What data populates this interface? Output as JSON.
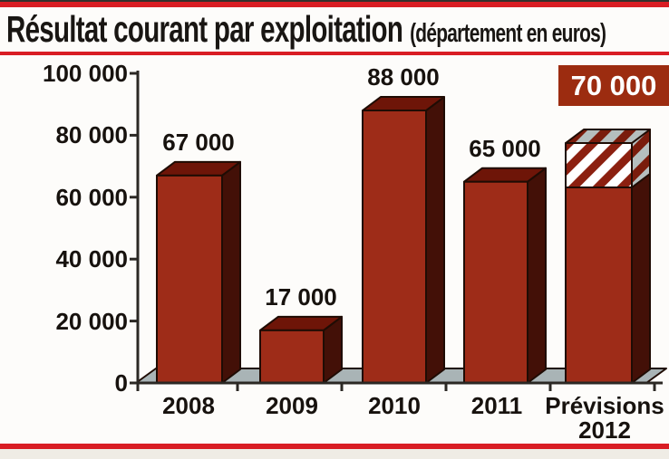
{
  "chart_data": {
    "type": "bar",
    "title": "Résultat courant par exploitation",
    "subtitle": "(département en euros)",
    "categories": [
      "2008",
      "2009",
      "2010",
      "2011",
      "Prévisions 2012"
    ],
    "values": [
      67000,
      17000,
      88000,
      65000,
      70000
    ],
    "value_labels": [
      "67 000",
      "17 000",
      "88 000",
      "65 000",
      "70 000"
    ],
    "categories_display": [
      [
        "2008"
      ],
      [
        "2009"
      ],
      [
        "2010"
      ],
      [
        "2011"
      ],
      [
        "Prévisions",
        "2012"
      ]
    ],
    "y_tick_labels": [
      "100 000",
      "80 000",
      "60 000",
      "40 000",
      "20 000",
      "0"
    ],
    "ylim": [
      0,
      100000
    ],
    "grid": "off",
    "style": "3d-bars",
    "forecast_category": "Prévisions 2012",
    "forecast_note": "last bar top segment hatched, value shown in badge"
  },
  "colors": {
    "accent_red": "#d91d24",
    "bar_front": "#9e2c18",
    "bar_top": "#6e1508",
    "bar_side": "#431007",
    "outline": "#1f0c04",
    "floor": "#a9b4b6",
    "axis": "#2b2824",
    "hatch_bg_front": "#ffffff",
    "hatch_stripe_front": "#8c2010",
    "hatch_bg_side": "#b5bebe",
    "hatch_stripe_side": "#7a1c0c",
    "badge_bg": "#9c2c10",
    "badge_text": "#ffffff"
  }
}
